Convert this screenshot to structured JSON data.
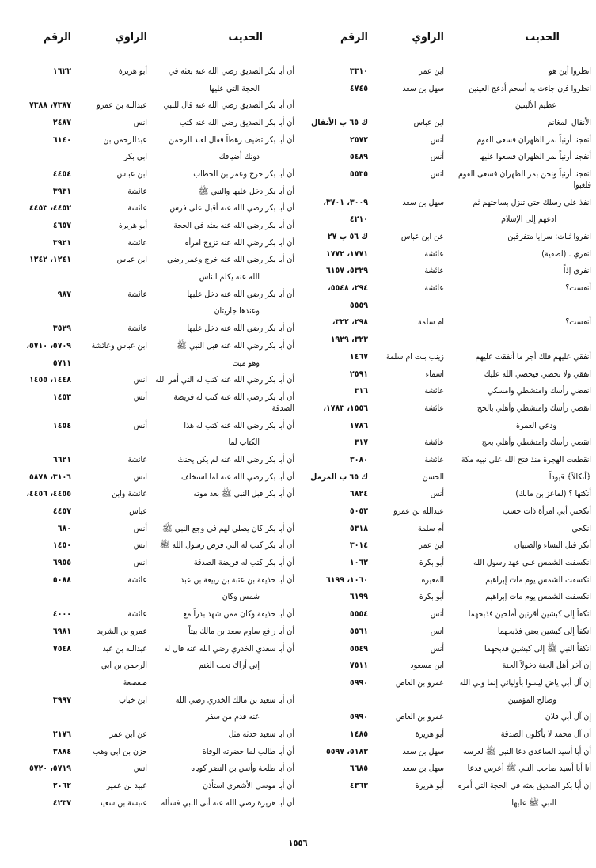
{
  "headers": {
    "hadith": "الحديث",
    "narrator": "الراوي",
    "number": "الرقم"
  },
  "right_column": [
    {
      "hadith": "انظروا أين هو",
      "narrator": "ابن عمر",
      "number": "٣٣١٠"
    },
    {
      "hadith": "انظروا فإن جاءت به أسحم أدعج العينين",
      "narrator": "سهل بن سعد",
      "number": "٤٧٤٥"
    },
    {
      "hadith": "عظيم الأليتين",
      "narrator": "",
      "number": "",
      "continuation": true
    },
    {
      "hadith": "الأنفال المغانم",
      "narrator": "ابن عباس",
      "number": "ك ٦٥ ب الأنفال"
    },
    {
      "hadith": "أنفجنا أرنباً بمر الظهران فسعى القوم",
      "narrator": "أنس",
      "number": "٢٥٧٢"
    },
    {
      "hadith": "أنفجنا أرنباً بمر الظهران فسعوا عليها",
      "narrator": "أنس",
      "number": "٥٤٨٩"
    },
    {
      "hadith": "انفجنا أرنباً ونحن بمر الظهران فسعى القوم فلغبوا",
      "narrator": "انس",
      "number": "٥٥٣٥"
    },
    {
      "hadith": "انفذ على رسلك حتى تنزل بساحتهم ثم",
      "narrator": "سهل بن سعد",
      "number": "٣٠٠٩، ٣٧٠١،"
    },
    {
      "hadith": "ادعهم إلى الإسلام",
      "narrator": "",
      "number": "٤٢١٠",
      "continuation": true
    },
    {
      "hadith": "انفروا ثبات: سرايا متفرقين",
      "narrator": "عن ابن عباس",
      "number": "ك ٥٦ ب ٢٧"
    },
    {
      "hadith": "انفري . (لصفية)",
      "narrator": "عائشة",
      "number": "١٧٧١، ١٧٧٢"
    },
    {
      "hadith": "انفري إذاً",
      "narrator": "عائشة",
      "number": "٥٣٢٩، ٦١٥٧"
    },
    {
      "hadith": "أنفست؟",
      "narrator": "عائشة",
      "number": "٢٩٤، ٥٥٤٨،"
    },
    {
      "hadith": "",
      "narrator": "",
      "number": "٥٥٥٩",
      "continuation": true
    },
    {
      "hadith": "أنفست؟",
      "narrator": "ام سلمة",
      "number": "٢٩٨، ٣٢٢،"
    },
    {
      "hadith": "",
      "narrator": "",
      "number": "٣٢٣، ١٩٢٩",
      "continuation": true
    },
    {
      "hadith": "أنفقي عليهم فلك أجر ما أنفقت عليهم",
      "narrator": "زينب بنت ام سلمة",
      "number": "١٤٦٧"
    },
    {
      "hadith": "انفقي ولا تحصي فيحصي الله عليك",
      "narrator": "اسماء",
      "number": "٢٥٩١"
    },
    {
      "hadith": "انقضي رأسك وامتشطي وامسكي",
      "narrator": "عائشة",
      "number": "٣١٦"
    },
    {
      "hadith": "انقضي رأسك وامتشطي وأهلي بالحج",
      "narrator": "عائشة",
      "number": "١٥٥٦، ١٧٨٣،"
    },
    {
      "hadith": "ودعي العمرة",
      "narrator": "",
      "number": "١٧٨٦",
      "continuation": true
    },
    {
      "hadith": "انقضي رأسك وامتشطي وأهلي بحج",
      "narrator": "عائشة",
      "number": "٣١٧"
    },
    {
      "hadith": "انقطعت الهجرة منذ فتح الله على نبيه مكة",
      "narrator": "عائشة",
      "number": "٣٠٨٠"
    },
    {
      "hadith": "﴿أنكالاً﴾ قيوداً",
      "narrator": "الحسن",
      "number": "ك ٦٥ ب المزمل"
    },
    {
      "hadith": "أنكتها ؟ (لماعز بن مالك)",
      "narrator": "أنس",
      "number": "٦٨٢٤"
    },
    {
      "hadith": "أنكحني أبي امرأة ذات حسب",
      "narrator": "عبدالله بن عمرو",
      "number": "٥٠٥٢"
    },
    {
      "hadith": "انكحي",
      "narrator": "أم سلمة",
      "number": "٥٣١٨"
    },
    {
      "hadith": "أنكر قتل النساء والصبيان",
      "narrator": "ابن عمر",
      "number": "٣٠١٤"
    },
    {
      "hadith": "انكسفت الشمس على عهد رسول الله",
      "narrator": "أبو بكرة",
      "number": "١٠٦٢"
    },
    {
      "hadith": "انكسفت الشمس يوم مات إبراهيم",
      "narrator": "المغيرة",
      "number": "١٠٦٠، ٦١٩٩"
    },
    {
      "hadith": "انكسفت الشمس يوم مات إبراهيم",
      "narrator": "أبو بكرة",
      "number": "٦١٩٩"
    },
    {
      "hadith": "انكفأ إلى كبشين أقرنين أملحين فذبحهما",
      "narrator": "أنس",
      "number": "٥٥٥٤"
    },
    {
      "hadith": "انكفأ إلى كبشين يعني فذبحهما",
      "narrator": "انس",
      "number": "٥٥٦١"
    },
    {
      "hadith": "انكفأ النبي ﷺ إلى كبشين فذبحهما",
      "narrator": "أنس",
      "number": "٥٥٤٩"
    },
    {
      "hadith": "إن آخر أهل الجنة دخولاً الجنة",
      "narrator": "ابن مسعود",
      "number": "٧٥١١"
    },
    {
      "hadith": "إن آل أبي ياض ليسوا بأوليائي إنما ولي الله",
      "narrator": "عمرو بن العاص",
      "number": "٥٩٩٠"
    },
    {
      "hadith": "وصالح المؤمنين",
      "narrator": "",
      "number": "",
      "continuation": true
    },
    {
      "hadith": "إن آل أبي فلان",
      "narrator": "عمرو بن العاص",
      "number": "٥٩٩٠"
    },
    {
      "hadith": "أن آل محمد لا يأكلون الصدقة",
      "narrator": "أبو هريرة",
      "number": "١٤٨٥"
    },
    {
      "hadith": "أن أبا أسيد الساعدي دعا النبي ﷺ لعرسه",
      "narrator": "سهل بن سعد",
      "number": "٥١٨٣، ٥٥٩٧"
    },
    {
      "hadith": "أنا أبا أسيد صاحب النبي ﷺ أعرس فدعا",
      "narrator": "سهل بن سعد",
      "number": "٦٦٨٥"
    },
    {
      "hadith": "إن أبا بكر الصديق بعثه في الحجة التي أمره",
      "narrator": "أبو هريرة",
      "number": "٤٣٦٣"
    },
    {
      "hadith": "النبي ﷺ عليها",
      "narrator": "",
      "number": "",
      "continuation": true
    }
  ],
  "left_column": [
    {
      "hadith": "أن أبا بكر الصديق رضي الله عنه بعثه في",
      "narrator": "أبو هريرة",
      "number": "١٦٢٢"
    },
    {
      "hadith": "الحجة التي عليها",
      "narrator": "",
      "number": "",
      "continuation": true
    },
    {
      "hadith": "أن أبا بكر الصديق رضي الله عنه قال للنبي",
      "narrator": "عبدالله بن عمرو",
      "number": "٧٣٨٧، ٧٣٨٨"
    },
    {
      "hadith": "أن أبا بكر الصديق رضي الله عنه كتب",
      "narrator": "انس",
      "number": "٢٤٨٧"
    },
    {
      "hadith": "أن أبا بكر تضيف رهطاً فقال لعبد الرحمن",
      "narrator": "عبدالرحمن بن",
      "number": "٦١٤٠"
    },
    {
      "hadith": "دونك أضيافك",
      "narrator": "ابي بكر",
      "number": "",
      "continuation": true
    },
    {
      "hadith": "أن أبا بكر خرج وعمر بن الخطاب",
      "narrator": "ابن عباس",
      "number": "٤٤٥٤"
    },
    {
      "hadith": "أن أبا بكر دخل عليها والنبي ﷺ",
      "narrator": "عائشة",
      "number": "٣٩٣١"
    },
    {
      "hadith": "أن أبا بكر رضي الله عنه أقبل على فرس",
      "narrator": "عائشة",
      "number": "٤٤٥٢، ٤٤٥٣"
    },
    {
      "hadith": "أن أبا بكر رضي الله عنه بعثه في الحجة",
      "narrator": "أبو هريرة",
      "number": "٤٦٥٧"
    },
    {
      "hadith": "أن أبا بكر رضي الله عنه تزوج امرأة",
      "narrator": "عائشة",
      "number": "٣٩٢١"
    },
    {
      "hadith": "أن أبا بكر رضي الله عنه خرج وعمر رضي",
      "narrator": "ابن عباس",
      "number": "١٢٤١، ١٢٤٢"
    },
    {
      "hadith": "الله عنه يكلم الناس",
      "narrator": "",
      "number": "",
      "continuation": true
    },
    {
      "hadith": "أن أبا بكر رضي الله عنه دخل عليها",
      "narrator": "عائشة",
      "number": "٩٨٧"
    },
    {
      "hadith": "وعندها جاريتان",
      "narrator": "",
      "number": "",
      "continuation": true
    },
    {
      "hadith": "أن أبا بكر رضي الله عنه دخل عليها",
      "narrator": "عائشة",
      "number": "٣٥٢٩"
    },
    {
      "hadith": "أن أبا بكر رضي الله عنه قبل النبي ﷺ",
      "narrator": "ابن عباس وعائشة",
      "number": "٥٧٠٩، ٥٧١٠،"
    },
    {
      "hadith": "وهو ميت",
      "narrator": "",
      "number": "٥٧١١",
      "continuation": true
    },
    {
      "hadith": "أن أبا بكر رضي الله عنه كتب له التي أمر الله",
      "narrator": "انس",
      "number": "١٤٤٨، ١٤٥٥"
    },
    {
      "hadith": "أن أبا بكر رضي الله عنه كتب له فريضة الصدقة",
      "narrator": "أنس",
      "number": "١٤٥٣"
    },
    {
      "hadith": "أن أبا بكر رضي الله عنه كتب له هذا",
      "narrator": "أنس",
      "number": "١٤٥٤"
    },
    {
      "hadith": "الكتاب لما",
      "narrator": "",
      "number": "",
      "continuation": true
    },
    {
      "hadith": "أن أبا بكر رضي الله عنه لم يكن يحنث",
      "narrator": "عائشة",
      "number": "٦٦٢١"
    },
    {
      "hadith": "أن أبا بكر رضي الله عنه لما استخلف",
      "narrator": "انس",
      "number": "٣١٠٦، ٥٨٧٨"
    },
    {
      "hadith": "أن أبا بكر قبل النبي ﷺ بعد موته",
      "narrator": "عائشة وابن",
      "number": "٤٤٥٥، ٤٤٥٦،"
    },
    {
      "hadith": "",
      "narrator": "عباس",
      "number": "٤٤٥٧",
      "continuation": true
    },
    {
      "hadith": "أن أبا بكر كان يصلي لهم في وجع النبي ﷺ",
      "narrator": "أنس",
      "number": "٦٨٠"
    },
    {
      "hadith": "أن أبا بكر كتب له التي فرض رسول الله ﷺ",
      "narrator": "انس",
      "number": "١٤٥٠"
    },
    {
      "hadith": "أن أبا بكر كتب له فريضة الصدقة",
      "narrator": "انس",
      "number": "٦٩٥٥"
    },
    {
      "hadith": "أن أبا حذيفة بن عتبة بن ربيعة بن عبد",
      "narrator": "عائشة",
      "number": "٥٠٨٨"
    },
    {
      "hadith": "شمس وكان",
      "narrator": "",
      "number": "",
      "continuation": true
    },
    {
      "hadith": "أن أبا حذيفة وكان ممن شهد بدراً مع",
      "narrator": "عائشة",
      "number": "٤٠٠٠"
    },
    {
      "hadith": "أن أبا رافع ساوم سعد بن مالك بيتاً",
      "narrator": "عمرو بن الشريد",
      "number": "٦٩٨١"
    },
    {
      "hadith": "أن أبا سعدي الخدري رضي الله عنه قال له",
      "narrator": "عبدالله بن عبد",
      "number": "٧٥٤٨"
    },
    {
      "hadith": "إني أراك تحب الغنم",
      "narrator": "الرحمن بن ابي",
      "number": "",
      "continuation": true
    },
    {
      "hadith": "",
      "narrator": "صعصعة",
      "number": "",
      "continuation": true
    },
    {
      "hadith": "أن أبا سعيد بن مالك الخدري رضي الله",
      "narrator": "ابن خباب",
      "number": "٣٩٩٧"
    },
    {
      "hadith": "عنه قدم من سفر",
      "narrator": "",
      "number": "",
      "continuation": true
    },
    {
      "hadith": "أن ابا سعيد حدثه مثل",
      "narrator": "عن ابن عمر",
      "number": "٢١٧٦"
    },
    {
      "hadith": "أن أبا طالب لما حضرته الوفاة",
      "narrator": "حزن بن ابي وهب",
      "number": "٣٨٨٤"
    },
    {
      "hadith": "أن أبا طلحة وأنس بن النضر كوياه",
      "narrator": "انس",
      "number": "٥٧١٩، ٥٧٢٠"
    },
    {
      "hadith": "أن أبا موسى الأشعري استأذن",
      "narrator": "عبيد بن عمير",
      "number": "٢٠٦٢"
    },
    {
      "hadith": "أن أبا هريرة رضي الله عنه أتى النبي فسأله",
      "narrator": "عنبسة بن سعيد",
      "number": "٤٢٣٧"
    }
  ],
  "page_number": "١٥٥٦"
}
